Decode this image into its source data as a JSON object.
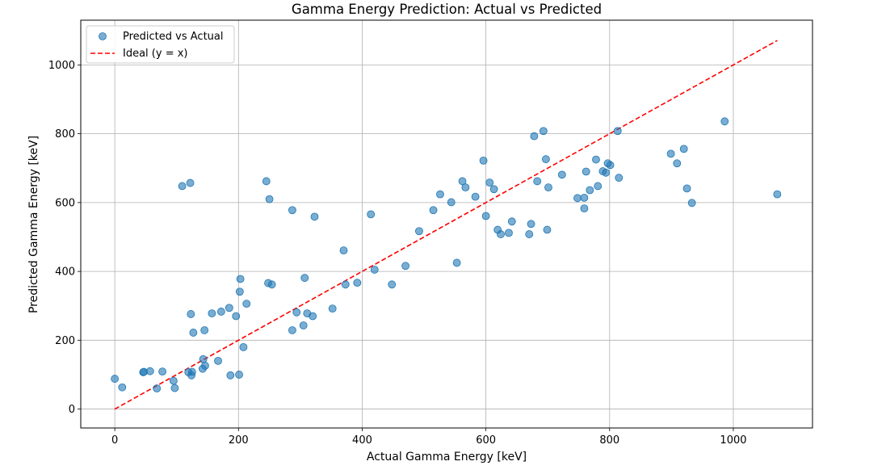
{
  "chart_data": {
    "type": "scatter",
    "title": "Gamma Energy Prediction: Actual vs Predicted",
    "xlabel": "Actual Gamma Energy [keV]",
    "ylabel": "Predicted Gamma Energy [keV]",
    "xlim": [
      -55,
      1128
    ],
    "ylim": [
      -55,
      1130
    ],
    "xticks": [
      0,
      200,
      400,
      600,
      800,
      1000
    ],
    "yticks": [
      0,
      200,
      400,
      600,
      800,
      1000
    ],
    "grid": true,
    "legend_position": "top-left",
    "series": [
      {
        "name": "Predicted vs Actual",
        "kind": "scatter",
        "color": "#1f77b4",
        "points": [
          [
            0,
            88
          ],
          [
            12,
            63
          ],
          [
            46,
            107
          ],
          [
            47,
            108
          ],
          [
            57,
            110
          ],
          [
            68,
            60
          ],
          [
            77,
            109
          ],
          [
            95,
            82
          ],
          [
            97,
            61
          ],
          [
            109,
            648
          ],
          [
            119,
            107
          ],
          [
            122,
            657
          ],
          [
            123,
            276
          ],
          [
            124,
            98
          ],
          [
            125,
            108
          ],
          [
            127,
            222
          ],
          [
            142,
            117
          ],
          [
            143,
            145
          ],
          [
            145,
            229
          ],
          [
            146,
            126
          ],
          [
            157,
            278
          ],
          [
            167,
            140
          ],
          [
            172,
            283
          ],
          [
            185,
            294
          ],
          [
            187,
            98
          ],
          [
            196,
            270
          ],
          [
            201,
            100
          ],
          [
            202,
            341
          ],
          [
            203,
            378
          ],
          [
            208,
            180
          ],
          [
            213,
            306
          ],
          [
            245,
            662
          ],
          [
            248,
            366
          ],
          [
            250,
            610
          ],
          [
            254,
            362
          ],
          [
            287,
            578
          ],
          [
            287,
            229
          ],
          [
            294,
            281
          ],
          [
            305,
            243
          ],
          [
            307,
            381
          ],
          [
            311,
            278
          ],
          [
            320,
            270
          ],
          [
            323,
            559
          ],
          [
            352,
            292
          ],
          [
            370,
            461
          ],
          [
            373,
            362
          ],
          [
            392,
            367
          ],
          [
            414,
            566
          ],
          [
            420,
            405
          ],
          [
            448,
            362
          ],
          [
            470,
            416
          ],
          [
            492,
            517
          ],
          [
            515,
            578
          ],
          [
            526,
            624
          ],
          [
            544,
            601
          ],
          [
            553,
            425
          ],
          [
            562,
            662
          ],
          [
            567,
            644
          ],
          [
            583,
            617
          ],
          [
            596,
            722
          ],
          [
            600,
            561
          ],
          [
            606,
            658
          ],
          [
            613,
            639
          ],
          [
            619,
            521
          ],
          [
            624,
            508
          ],
          [
            637,
            512
          ],
          [
            642,
            545
          ],
          [
            670,
            508
          ],
          [
            673,
            538
          ],
          [
            678,
            793
          ],
          [
            683,
            662
          ],
          [
            693,
            808
          ],
          [
            697,
            726
          ],
          [
            699,
            521
          ],
          [
            701,
            644
          ],
          [
            723,
            681
          ],
          [
            748,
            613
          ],
          [
            759,
            614
          ],
          [
            759,
            583
          ],
          [
            762,
            690
          ],
          [
            768,
            636
          ],
          [
            778,
            725
          ],
          [
            781,
            648
          ],
          [
            789,
            691
          ],
          [
            794,
            687
          ],
          [
            797,
            714
          ],
          [
            801,
            709
          ],
          [
            813,
            808
          ],
          [
            815,
            672
          ],
          [
            899,
            742
          ],
          [
            909,
            714
          ],
          [
            920,
            756
          ],
          [
            925,
            641
          ],
          [
            933,
            599
          ],
          [
            986,
            836
          ],
          [
            1071,
            624
          ]
        ]
      },
      {
        "name": "Ideal (y = x)",
        "kind": "line",
        "style": "dashed",
        "color": "#ff0000",
        "points": [
          [
            0,
            0
          ],
          [
            1071,
            1071
          ]
        ]
      }
    ]
  }
}
